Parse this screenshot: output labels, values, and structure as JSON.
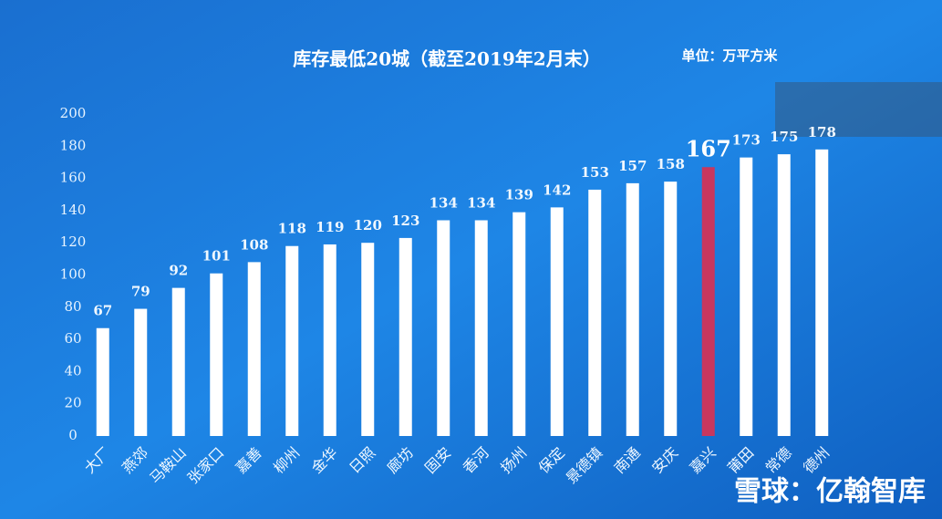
{
  "chart_data": {
    "type": "bar",
    "title": "库存最低20城（截至2019年2月末）",
    "subtitle": "单位：万平方米",
    "watermark": "雪球：亿翰智库",
    "categories": [
      "大厂",
      "燕郊",
      "马鞍山",
      "张家口",
      "嘉善",
      "柳州",
      "金华",
      "日照",
      "廊坊",
      "固安",
      "香河",
      "扬州",
      "保定",
      "景德镇",
      "南通",
      "安庆",
      "嘉兴",
      "莆田",
      "常德",
      "德州"
    ],
    "values": [
      67,
      79,
      92,
      101,
      108,
      118,
      119,
      120,
      123,
      134,
      134,
      139,
      142,
      153,
      157,
      158,
      167,
      173,
      175,
      178
    ],
    "colors": [
      "#ffffff",
      "#ffffff",
      "#ffffff",
      "#ffffff",
      "#ffffff",
      "#ffffff",
      "#ffffff",
      "#ffffff",
      "#ffffff",
      "#ffffff",
      "#ffffff",
      "#ffffff",
      "#ffffff",
      "#ffffff",
      "#ffffff",
      "#ffffff",
      "#c8375e",
      "#ffffff",
      "#ffffff",
      "#ffffff"
    ],
    "ylim": [
      0,
      200
    ],
    "yticks": [
      0,
      20,
      40,
      60,
      80,
      100,
      120,
      140,
      160,
      180,
      200
    ],
    "grid": false
  }
}
